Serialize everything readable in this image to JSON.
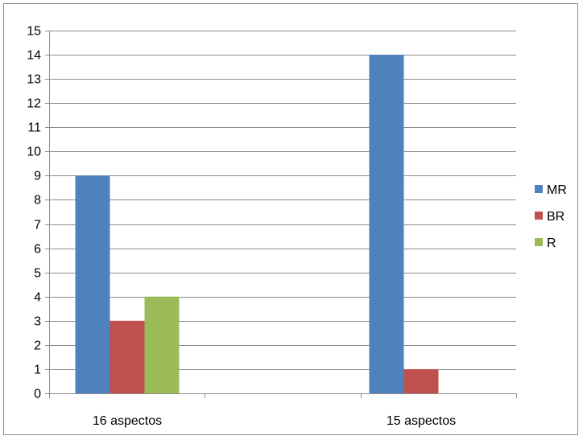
{
  "chart_data": {
    "type": "bar",
    "categories": [
      "16 aspectos",
      "15 aspectos"
    ],
    "series": [
      {
        "name": "MR",
        "values": [
          9,
          14
        ],
        "color": "#4f81bd"
      },
      {
        "name": "BR",
        "values": [
          3,
          1
        ],
        "color": "#c0504d"
      },
      {
        "name": "R",
        "values": [
          4,
          0
        ],
        "color": "#9bbb59"
      }
    ],
    "yticks": [
      "0",
      "1",
      "2",
      "3",
      "4",
      "5",
      "6",
      "7",
      "8",
      "9",
      "10",
      "11",
      "12",
      "13",
      "14",
      "15"
    ],
    "ylim": [
      0,
      15
    ],
    "grid": true,
    "legend_position": "right"
  }
}
